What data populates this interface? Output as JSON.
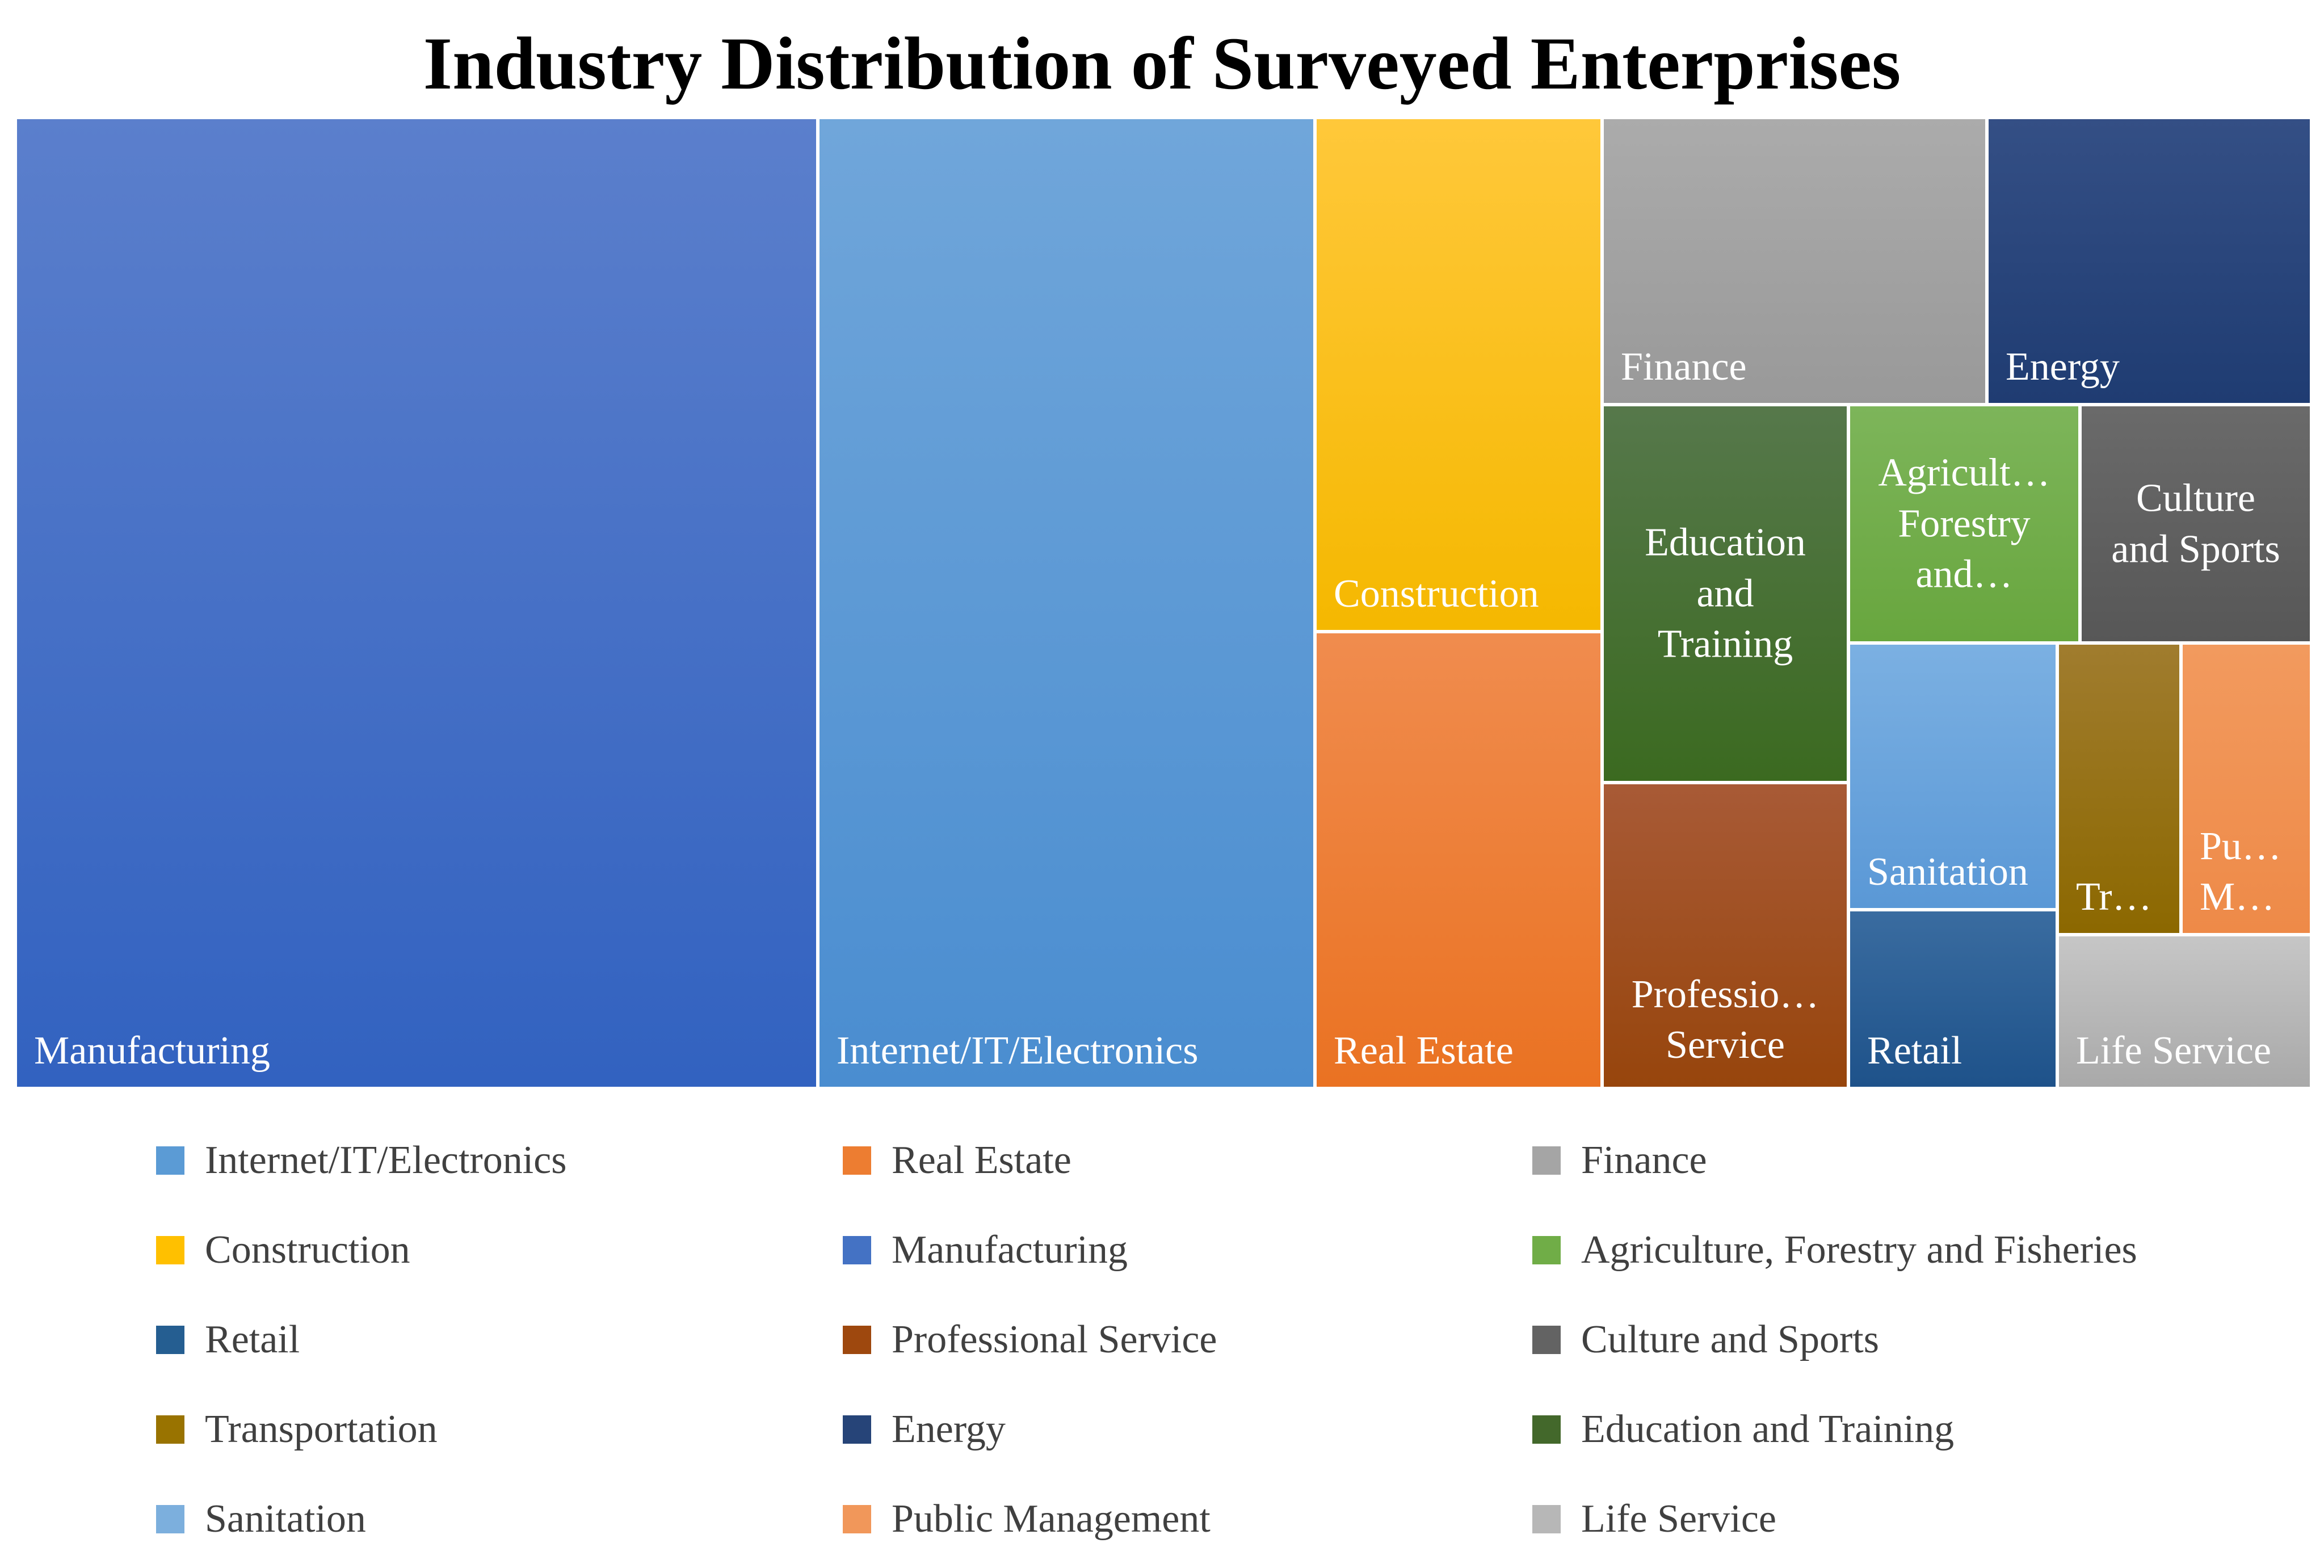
{
  "chart_data": {
    "type": "treemap",
    "title": "Industry Distribution of Surveyed Enterprises",
    "tiles": [
      {
        "name": "Manufacturing",
        "label": "Manufacturing",
        "value": 3496,
        "color": "#4472C4",
        "grad": [
          "#5B7FCC",
          "#3262C0"
        ],
        "label_pos": "bl"
      },
      {
        "name": "Internet/IT/Electronics",
        "label": "Internet/IT/Electronics",
        "value": 2163,
        "color": "#5B9BD5",
        "grad": [
          "#70A6DA",
          "#4A8DD0"
        ],
        "label_pos": "bl"
      },
      {
        "name": "Construction",
        "label": "Construction",
        "value": 664,
        "color": "#FFC000",
        "grad": [
          "#FFC83A",
          "#F5B800"
        ],
        "label_pos": "bl"
      },
      {
        "name": "Real Estate",
        "label": "Real Estate",
        "value": 586,
        "color": "#ED7D31",
        "grad": [
          "#F08C4E",
          "#EA7222"
        ],
        "label_pos": "bl"
      },
      {
        "name": "Finance",
        "label": "Finance",
        "value": 486,
        "color": "#A5A5A5",
        "grad": [
          "#ABABAB",
          "#999999"
        ],
        "label_pos": "bl"
      },
      {
        "name": "Energy",
        "label": "Energy",
        "value": 409,
        "color": "#264478",
        "grad": [
          "#344F85",
          "#1F3C72"
        ],
        "label_pos": "bl"
      },
      {
        "name": "Education and Training",
        "label": "Education\nand\nTraining",
        "value": 400,
        "color": "#43682B",
        "grad": [
          "#56784B",
          "#3B6A20"
        ],
        "label_pos": "center"
      },
      {
        "name": "Professional Service",
        "label": "Professio…\nService",
        "value": 316,
        "color": "#9E480E",
        "grad": [
          "#A85A36",
          "#97450C"
        ],
        "label_pos": "bc"
      },
      {
        "name": "Agriculture, Forestry and Fisheries",
        "label": "Agricult…\nForestry\nand…",
        "value": 276,
        "color": "#70AD47",
        "grad": [
          "#7DB55A",
          "#68A63E"
        ],
        "label_pos": "center"
      },
      {
        "name": "Culture and Sports",
        "label": "Culture\nand Sports",
        "value": 262,
        "color": "#636363",
        "grad": [
          "#6A6A6A",
          "#575757"
        ],
        "label_pos": "center"
      },
      {
        "name": "Sanitation",
        "label": "Sanitation",
        "value": 235,
        "color": "#5B9BD5",
        "grad": [
          "#7BB0E2",
          "#5A98D6"
        ],
        "label_pos": "bl"
      },
      {
        "name": "Retail",
        "label": "Retail",
        "value": 184,
        "color": "#255E91",
        "grad": [
          "#3A6CA0",
          "#1E528A"
        ],
        "label_pos": "bl"
      },
      {
        "name": "Transportation",
        "label": "Tr…",
        "value": 131,
        "color": "#997300",
        "grad": [
          "#A07C2E",
          "#8C6800"
        ],
        "label_pos": "bl"
      },
      {
        "name": "Public Management",
        "label": "Pu…\nM…",
        "value": 127,
        "color": "#F4B183",
        "grad": [
          "#F29A5E",
          "#EE8A48"
        ],
        "label_pos": "bl"
      },
      {
        "name": "Life Service",
        "label": "Life Service",
        "value": 121,
        "color": "#BFBFBF",
        "grad": [
          "#C6C6C6",
          "#A9A9A9"
        ],
        "label_pos": "bl"
      }
    ],
    "legend": [
      {
        "label": "Internet/IT/Electronics",
        "color": "#5B9BD5"
      },
      {
        "label": "Real Estate",
        "color": "#ED7D31"
      },
      {
        "label": "Finance",
        "color": "#A5A5A5"
      },
      {
        "label": "Construction",
        "color": "#FFC000"
      },
      {
        "label": "Manufacturing",
        "color": "#4472C4"
      },
      {
        "label": "Agriculture, Forestry and Fisheries",
        "color": "#70AD47"
      },
      {
        "label": "Retail",
        "color": "#255E91"
      },
      {
        "label": "Professional Service",
        "color": "#9E480E"
      },
      {
        "label": "Culture and Sports",
        "color": "#636363"
      },
      {
        "label": "Transportation",
        "color": "#997300"
      },
      {
        "label": "Energy",
        "color": "#264478"
      },
      {
        "label": "Education and Training",
        "color": "#43682B"
      },
      {
        "label": "Sanitation",
        "color": "#7CAFDD"
      },
      {
        "label": "Public Management",
        "color": "#F1975A"
      },
      {
        "label": "Life Service",
        "color": "#B7B7B7"
      }
    ],
    "legend_placement": "bottom",
    "legend_columns": 3
  }
}
